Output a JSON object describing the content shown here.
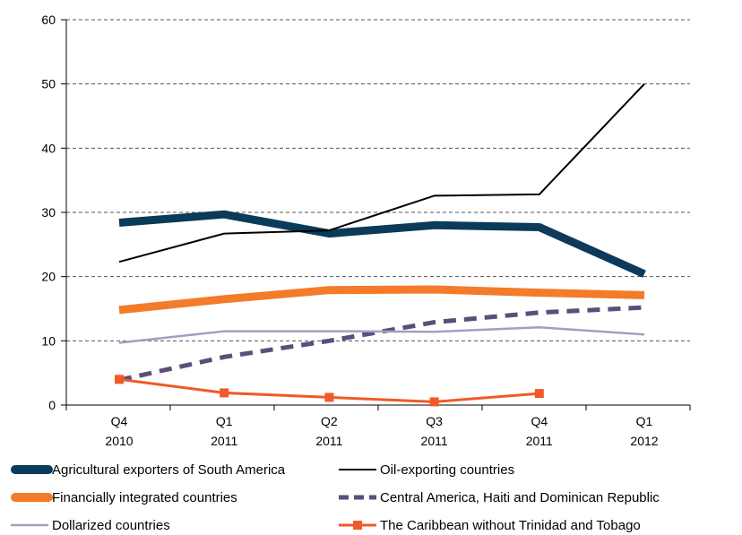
{
  "chart_data": {
    "type": "line",
    "title": "",
    "xlabel": "",
    "ylabel": "",
    "ylim": [
      0,
      60
    ],
    "yticks": [
      0,
      10,
      20,
      30,
      40,
      50,
      60
    ],
    "grid": "horizontal dashed",
    "categories": [
      {
        "quarter": "Q4",
        "year": "2010"
      },
      {
        "quarter": "Q1",
        "year": "2011"
      },
      {
        "quarter": "Q2",
        "year": "2011"
      },
      {
        "quarter": "Q3",
        "year": "2011"
      },
      {
        "quarter": "Q4",
        "year": "2011"
      },
      {
        "quarter": "Q1",
        "year": "2012"
      }
    ],
    "legend_position": "bottom",
    "series": [
      {
        "name": "Agricultural exporters of South America",
        "color": "#0b3a5a",
        "style": "thick-solid",
        "values": [
          28.4,
          29.7,
          26.7,
          28.0,
          27.7,
          20.4
        ]
      },
      {
        "name": "Oil-exporting countries",
        "color": "#000000",
        "style": "thin-solid",
        "values": [
          22.3,
          26.7,
          27.2,
          32.6,
          32.8,
          50.0
        ]
      },
      {
        "name": "Financially integrated countries",
        "color": "#f47b2a",
        "style": "thick-solid",
        "values": [
          14.8,
          16.5,
          17.9,
          18.0,
          17.5,
          17.1
        ]
      },
      {
        "name": "Central America, Haiti and Dominican Republic",
        "color": "#5a4f7a",
        "style": "dashed",
        "values": [
          3.9,
          7.5,
          10.0,
          12.9,
          14.4,
          15.2
        ]
      },
      {
        "name": "Dollarized countries",
        "color": "#a99bc4",
        "style": "thin-solid",
        "values": [
          9.7,
          11.5,
          11.5,
          11.4,
          12.1,
          11.0
        ]
      },
      {
        "name": "The Caribbean without Trinidad and Tobago",
        "color": "#f05a28",
        "style": "square-markers",
        "values": [
          4.0,
          1.9,
          1.2,
          0.5,
          1.8,
          null
        ]
      }
    ]
  }
}
